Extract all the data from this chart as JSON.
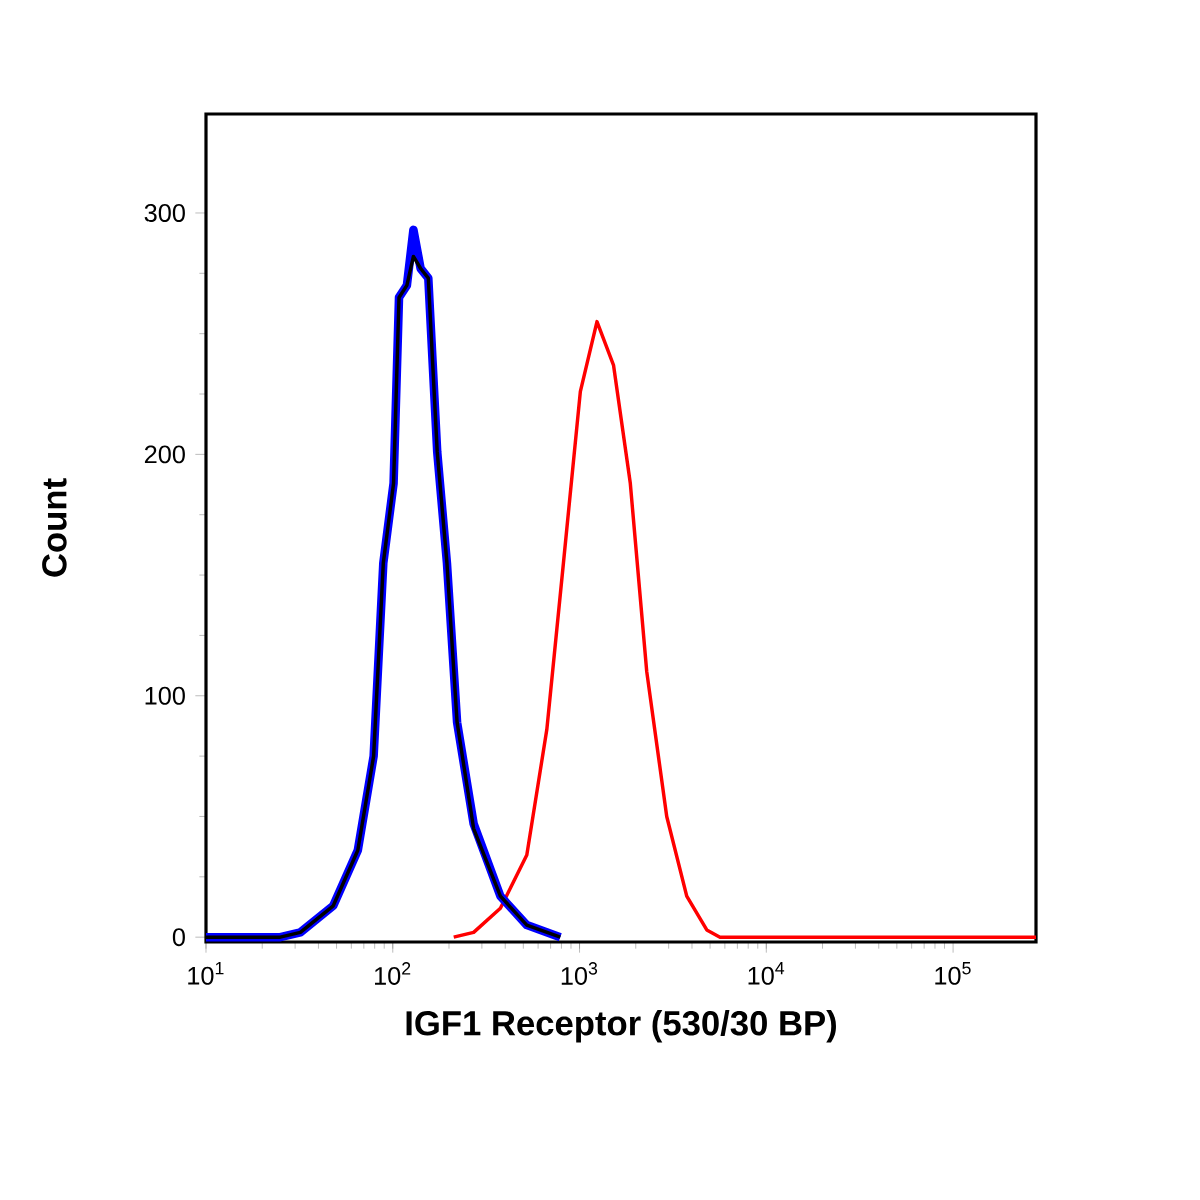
{
  "chart_data": {
    "type": "line",
    "xlabel": "IGF1 Receptor (530/30 BP)",
    "ylabel": "Count",
    "log": "x",
    "xlim": [
      10,
      278000
    ],
    "ylim": [
      -2,
      341
    ],
    "xticks": [
      {
        "value": 10,
        "label": "10$^{1}$"
      },
      {
        "value": 100,
        "label": "10$^{2}$"
      },
      {
        "value": 1000,
        "label": "10$^{3}$"
      },
      {
        "value": 10000,
        "label": "10$^{4}$"
      },
      {
        "value": 100000,
        "label": "10$^{5}$"
      }
    ],
    "yticks": [
      0,
      100,
      200,
      300
    ],
    "series": [
      {
        "color": "#0000ff",
        "x": [
          10,
          25,
          32,
          48,
          65,
          79,
          89,
          101,
          108,
          119,
          129,
          141,
          155,
          173,
          195,
          221,
          271,
          377,
          522,
          789
        ],
        "values": [
          0,
          0,
          2,
          13,
          36,
          75,
          155,
          188,
          265,
          270,
          293,
          277,
          273,
          201,
          155,
          89,
          47,
          17,
          5,
          0
        ]
      },
      {
        "color": "#000000",
        "x": [
          10,
          25,
          32,
          48,
          65,
          79,
          89,
          101,
          108,
          119,
          129,
          141,
          155,
          173,
          195,
          221,
          271,
          377,
          522,
          789
        ],
        "values": [
          0,
          0,
          2,
          13,
          36,
          75,
          155,
          188,
          265,
          270,
          282,
          277,
          273,
          201,
          155,
          89,
          45,
          17,
          5,
          0
        ]
      },
      {
        "color": "#ff0000",
        "x": [
          212,
          271,
          377,
          522,
          668,
          820,
          1010,
          1240,
          1520,
          1870,
          2290,
          2930,
          3750,
          4800,
          5650,
          278000
        ],
        "values": [
          0,
          2,
          12,
          34,
          86,
          155,
          226,
          255,
          237,
          188,
          110,
          50,
          17,
          3,
          0,
          0
        ]
      }
    ]
  }
}
